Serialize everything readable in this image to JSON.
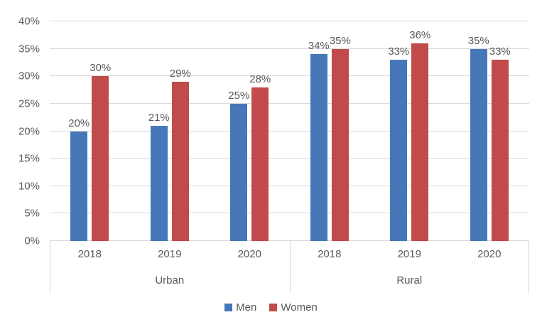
{
  "chart_data": {
    "type": "bar",
    "title": "",
    "xlabel": "",
    "ylabel": "",
    "ylim": [
      0,
      40
    ],
    "yticks": [
      0,
      5,
      10,
      15,
      20,
      25,
      30,
      35,
      40
    ],
    "ytick_format": "{v}%",
    "value_label_format": "{v}%",
    "grid": true,
    "legend_position": "bottom",
    "group_labels": [
      "Urban",
      "Rural"
    ],
    "categories": [
      "2018",
      "2019",
      "2020",
      "2018",
      "2019",
      "2020"
    ],
    "series": [
      {
        "name": "Men",
        "color": "#4678B9",
        "values": [
          20,
          21,
          25,
          34,
          33,
          35
        ]
      },
      {
        "name": "Women",
        "color": "#C14A4A",
        "values": [
          30,
          29,
          28,
          35,
          36,
          33
        ]
      }
    ],
    "colors": {
      "grid": "#D9D9D9",
      "axis": "#D9D9D9",
      "text": "#595959",
      "background": "#FFFFFF"
    }
  }
}
